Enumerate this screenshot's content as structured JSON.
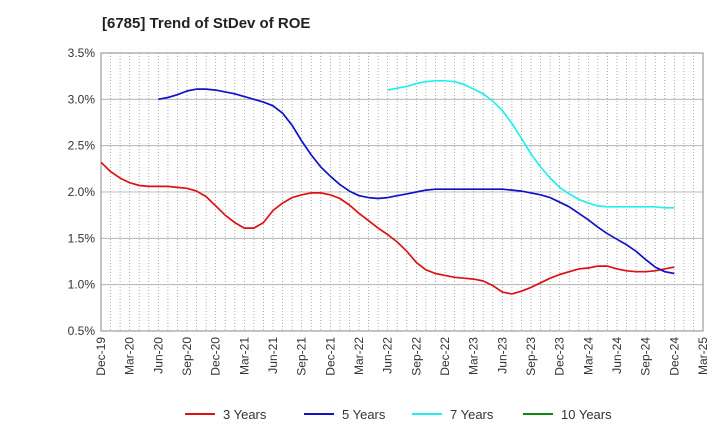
{
  "chart_data": {
    "type": "line",
    "title": "[6785]  Trend of StDev of ROE",
    "xlabel": "",
    "ylabel": "",
    "ylim": [
      0.5,
      3.5
    ],
    "y_ticks": [
      "0.5%",
      "1.0%",
      "1.5%",
      "2.0%",
      "2.5%",
      "3.0%",
      "3.5%"
    ],
    "y_tick_values": [
      0.5,
      1.0,
      1.5,
      2.0,
      2.5,
      3.0,
      3.5
    ],
    "x_ticks": [
      "Dec-19",
      "Mar-20",
      "Jun-20",
      "Sep-20",
      "Dec-20",
      "Mar-21",
      "Jun-21",
      "Sep-21",
      "Dec-21",
      "Mar-22",
      "Jun-22",
      "Sep-22",
      "Dec-22",
      "Mar-23",
      "Jun-23",
      "Sep-23",
      "Dec-23",
      "Mar-24",
      "Jun-24",
      "Sep-24",
      "Dec-24",
      "Mar-25"
    ],
    "grid": true,
    "legend_position": "bottom",
    "series": [
      {
        "name": "3 Years",
        "color": "#dd1111",
        "points": [
          [
            "Dec-19",
            2.32
          ],
          [
            "Jan-20",
            2.22
          ],
          [
            "Feb-20",
            2.15
          ],
          [
            "Mar-20",
            2.1
          ],
          [
            "Apr-20",
            2.07
          ],
          [
            "May-20",
            2.06
          ],
          [
            "Jun-20",
            2.06
          ],
          [
            "Jul-20",
            2.06
          ],
          [
            "Aug-20",
            2.05
          ],
          [
            "Sep-20",
            2.04
          ],
          [
            "Oct-20",
            2.01
          ],
          [
            "Nov-20",
            1.95
          ],
          [
            "Dec-20",
            1.85
          ],
          [
            "Jan-21",
            1.75
          ],
          [
            "Feb-21",
            1.67
          ],
          [
            "Mar-21",
            1.61
          ],
          [
            "Apr-21",
            1.61
          ],
          [
            "May-21",
            1.67
          ],
          [
            "Jun-21",
            1.8
          ],
          [
            "Jul-21",
            1.88
          ],
          [
            "Aug-21",
            1.94
          ],
          [
            "Sep-21",
            1.97
          ],
          [
            "Oct-21",
            1.99
          ],
          [
            "Nov-21",
            1.99
          ],
          [
            "Dec-21",
            1.97
          ],
          [
            "Jan-22",
            1.93
          ],
          [
            "Feb-22",
            1.86
          ],
          [
            "Mar-22",
            1.77
          ],
          [
            "Apr-22",
            1.69
          ],
          [
            "May-22",
            1.61
          ],
          [
            "Jun-22",
            1.54
          ],
          [
            "Jul-22",
            1.46
          ],
          [
            "Aug-22",
            1.36
          ],
          [
            "Sep-22",
            1.24
          ],
          [
            "Oct-22",
            1.16
          ],
          [
            "Nov-22",
            1.12
          ],
          [
            "Dec-22",
            1.1
          ],
          [
            "Jan-23",
            1.08
          ],
          [
            "Feb-23",
            1.07
          ],
          [
            "Mar-23",
            1.06
          ],
          [
            "Apr-23",
            1.04
          ],
          [
            "May-23",
            0.99
          ],
          [
            "Jun-23",
            0.92
          ],
          [
            "Jul-23",
            0.9
          ],
          [
            "Aug-23",
            0.93
          ],
          [
            "Sep-23",
            0.97
          ],
          [
            "Oct-23",
            1.02
          ],
          [
            "Nov-23",
            1.07
          ],
          [
            "Dec-23",
            1.11
          ],
          [
            "Jan-24",
            1.14
          ],
          [
            "Feb-24",
            1.17
          ],
          [
            "Mar-24",
            1.18
          ],
          [
            "Apr-24",
            1.2
          ],
          [
            "May-24",
            1.2
          ],
          [
            "Jun-24",
            1.17
          ],
          [
            "Jul-24",
            1.15
          ],
          [
            "Aug-24",
            1.14
          ],
          [
            "Sep-24",
            1.14
          ],
          [
            "Oct-24",
            1.15
          ],
          [
            "Nov-24",
            1.17
          ],
          [
            "Dec-24",
            1.19
          ]
        ]
      },
      {
        "name": "5 Years",
        "color": "#1111cc",
        "points": [
          [
            "Jun-20",
            3.0
          ],
          [
            "Jul-20",
            3.02
          ],
          [
            "Aug-20",
            3.05
          ],
          [
            "Sep-20",
            3.09
          ],
          [
            "Oct-20",
            3.11
          ],
          [
            "Nov-20",
            3.11
          ],
          [
            "Dec-20",
            3.1
          ],
          [
            "Jan-21",
            3.08
          ],
          [
            "Feb-21",
            3.06
          ],
          [
            "Mar-21",
            3.03
          ],
          [
            "Apr-21",
            3.0
          ],
          [
            "May-21",
            2.97
          ],
          [
            "Jun-21",
            2.93
          ],
          [
            "Jul-21",
            2.85
          ],
          [
            "Aug-21",
            2.72
          ],
          [
            "Sep-21",
            2.55
          ],
          [
            "Oct-21",
            2.4
          ],
          [
            "Nov-21",
            2.27
          ],
          [
            "Dec-21",
            2.17
          ],
          [
            "Jan-22",
            2.08
          ],
          [
            "Feb-22",
            2.01
          ],
          [
            "Mar-22",
            1.96
          ],
          [
            "Apr-22",
            1.94
          ],
          [
            "May-22",
            1.93
          ],
          [
            "Jun-22",
            1.94
          ],
          [
            "Jul-22",
            1.96
          ],
          [
            "Aug-22",
            1.98
          ],
          [
            "Sep-22",
            2.0
          ],
          [
            "Oct-22",
            2.02
          ],
          [
            "Nov-22",
            2.03
          ],
          [
            "Dec-22",
            2.03
          ],
          [
            "Jan-23",
            2.03
          ],
          [
            "Feb-23",
            2.03
          ],
          [
            "Mar-23",
            2.03
          ],
          [
            "Apr-23",
            2.03
          ],
          [
            "May-23",
            2.03
          ],
          [
            "Jun-23",
            2.03
          ],
          [
            "Jul-23",
            2.02
          ],
          [
            "Aug-23",
            2.01
          ],
          [
            "Sep-23",
            1.99
          ],
          [
            "Oct-23",
            1.97
          ],
          [
            "Nov-23",
            1.94
          ],
          [
            "Dec-23",
            1.89
          ],
          [
            "Jan-24",
            1.84
          ],
          [
            "Feb-24",
            1.77
          ],
          [
            "Mar-24",
            1.7
          ],
          [
            "Apr-24",
            1.62
          ],
          [
            "May-24",
            1.55
          ],
          [
            "Jun-24",
            1.49
          ],
          [
            "Jul-24",
            1.43
          ],
          [
            "Aug-24",
            1.36
          ],
          [
            "Sep-24",
            1.27
          ],
          [
            "Oct-24",
            1.19
          ],
          [
            "Nov-24",
            1.14
          ],
          [
            "Dec-24",
            1.12
          ]
        ]
      },
      {
        "name": "7 Years",
        "color": "#22eeee",
        "points": [
          [
            "Jun-22",
            3.1
          ],
          [
            "Jul-22",
            3.12
          ],
          [
            "Aug-22",
            3.14
          ],
          [
            "Sep-22",
            3.17
          ],
          [
            "Oct-22",
            3.19
          ],
          [
            "Nov-22",
            3.2
          ],
          [
            "Dec-22",
            3.2
          ],
          [
            "Jan-23",
            3.19
          ],
          [
            "Feb-23",
            3.16
          ],
          [
            "Mar-23",
            3.11
          ],
          [
            "Apr-23",
            3.06
          ],
          [
            "May-23",
            2.98
          ],
          [
            "Jun-23",
            2.88
          ],
          [
            "Jul-23",
            2.74
          ],
          [
            "Aug-23",
            2.58
          ],
          [
            "Sep-23",
            2.41
          ],
          [
            "Oct-23",
            2.27
          ],
          [
            "Nov-23",
            2.15
          ],
          [
            "Dec-23",
            2.05
          ],
          [
            "Jan-24",
            1.98
          ],
          [
            "Feb-24",
            1.92
          ],
          [
            "Mar-24",
            1.88
          ],
          [
            "Apr-24",
            1.85
          ],
          [
            "May-24",
            1.84
          ],
          [
            "Jun-24",
            1.84
          ],
          [
            "Jul-24",
            1.84
          ],
          [
            "Aug-24",
            1.84
          ],
          [
            "Sep-24",
            1.84
          ],
          [
            "Oct-24",
            1.84
          ],
          [
            "Nov-24",
            1.83
          ],
          [
            "Dec-24",
            1.83
          ]
        ]
      },
      {
        "name": "10 Years",
        "color": "#118811",
        "points": []
      }
    ]
  }
}
